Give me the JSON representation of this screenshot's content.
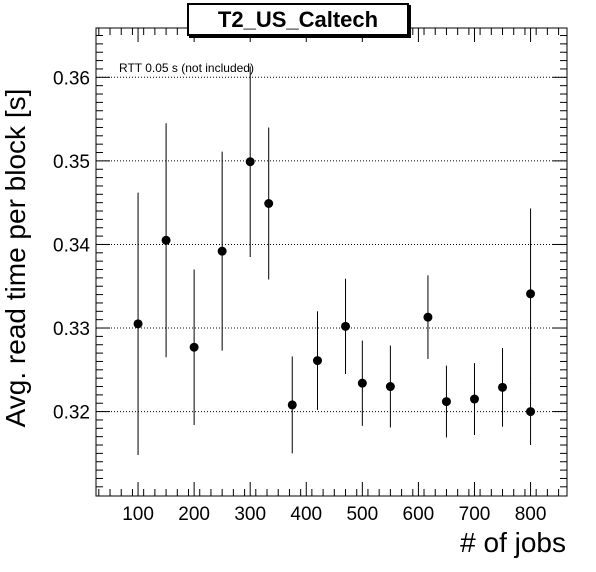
{
  "chart_data": {
    "type": "scatter",
    "title": "T2_US_Caltech",
    "xlabel": "# of jobs",
    "ylabel": "Avg. read time per block [s]",
    "annotation": "RTT 0.05 s (not included)",
    "xlim": [
      25,
      865
    ],
    "ylim": [
      0.3099,
      0.3659
    ],
    "x_ticks": [
      "100",
      "200",
      "300",
      "400",
      "500",
      "600",
      "700",
      "800"
    ],
    "y_ticks": [
      "0.32",
      "0.33",
      "0.34",
      "0.35",
      "0.36"
    ],
    "grid": "horizontal dotted",
    "points": [
      {
        "x": 100,
        "y": 0.3305,
        "err": 0.0157
      },
      {
        "x": 150,
        "y": 0.3405,
        "err": 0.014
      },
      {
        "x": 200,
        "y": 0.3277,
        "err": 0.0093
      },
      {
        "x": 250,
        "y": 0.3392,
        "err": 0.0119
      },
      {
        "x": 300,
        "y": 0.3499,
        "err": 0.0114
      },
      {
        "x": 333,
        "y": 0.3449,
        "err": 0.0091
      },
      {
        "x": 375,
        "y": 0.3208,
        "err": 0.0058
      },
      {
        "x": 420,
        "y": 0.3261,
        "err": 0.0059
      },
      {
        "x": 470,
        "y": 0.3302,
        "err": 0.0057
      },
      {
        "x": 500,
        "y": 0.3234,
        "err": 0.0051
      },
      {
        "x": 550,
        "y": 0.323,
        "err": 0.0049
      },
      {
        "x": 617,
        "y": 0.3313,
        "err": 0.005
      },
      {
        "x": 650,
        "y": 0.3212,
        "err": 0.0043
      },
      {
        "x": 700,
        "y": 0.3215,
        "err": 0.0043
      },
      {
        "x": 750,
        "y": 0.3229,
        "err": 0.0047
      },
      {
        "x": 800,
        "y": 0.32,
        "err": 0.004
      },
      {
        "x": 800,
        "y": 0.3341,
        "err": 0.0102
      }
    ]
  }
}
